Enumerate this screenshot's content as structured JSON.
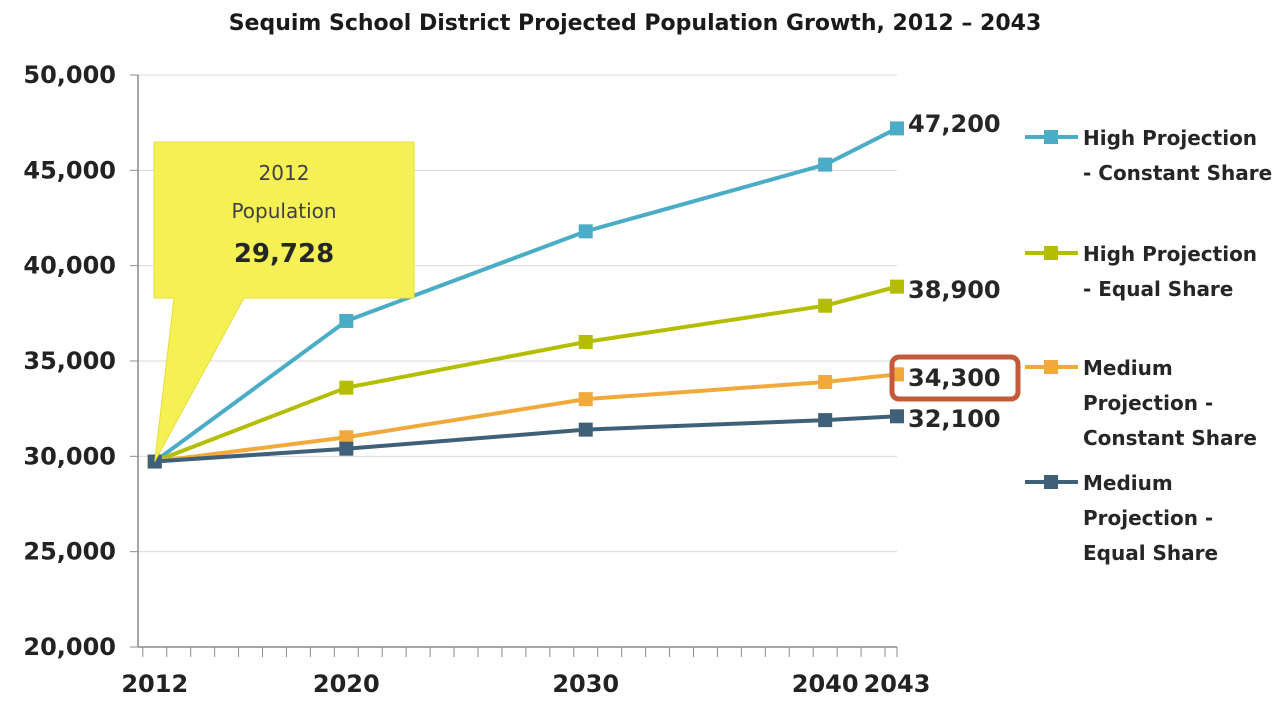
{
  "chart_data": {
    "type": "line",
    "title": "Sequim School District Projected Population Growth, 2012 – 2043",
    "xlabel": "",
    "ylabel": "",
    "x": [
      2012,
      2020,
      2030,
      2040,
      2043
    ],
    "x_tick_labels": [
      "2012",
      "2020",
      "2030",
      "2040",
      "2043"
    ],
    "ylim": [
      20000,
      50000
    ],
    "y_ticks": [
      20000,
      25000,
      30000,
      35000,
      40000,
      45000,
      50000
    ],
    "y_tick_labels": [
      "20,000",
      "25,000",
      "30,000",
      "35,000",
      "40,000",
      "45,000",
      "50,000"
    ],
    "grid": "horizontal",
    "legend_position": "right",
    "series": [
      {
        "name_lines": [
          "High Projection",
          "- Constant Share"
        ],
        "color": "#4bacc6",
        "values": [
          29728,
          37100,
          41800,
          45300,
          47200
        ],
        "end_label": "47,200"
      },
      {
        "name_lines": [
          "High Projection",
          "- Equal Share"
        ],
        "color": "#b5bd00",
        "values": [
          29728,
          33600,
          36000,
          37900,
          38900
        ],
        "end_label": "38,900"
      },
      {
        "name_lines": [
          "Medium",
          "Projection -",
          "Constant Share"
        ],
        "color": "#f2a93b",
        "values": [
          29728,
          31000,
          33000,
          33900,
          34300
        ],
        "end_label": "34,300",
        "end_label_highlight_color": "#c55a3a"
      },
      {
        "name_lines": [
          "Medium",
          "Projection -",
          "Equal Share"
        ],
        "color": "#3f6079",
        "values": [
          29728,
          30400,
          31400,
          31900,
          32100
        ],
        "end_label": "32,100"
      }
    ],
    "annotation": {
      "lines": [
        "2012",
        "Population"
      ],
      "value": "29,728",
      "fill_color": "#f5f154",
      "points_to": {
        "x": 2012,
        "y": 29728
      }
    }
  }
}
